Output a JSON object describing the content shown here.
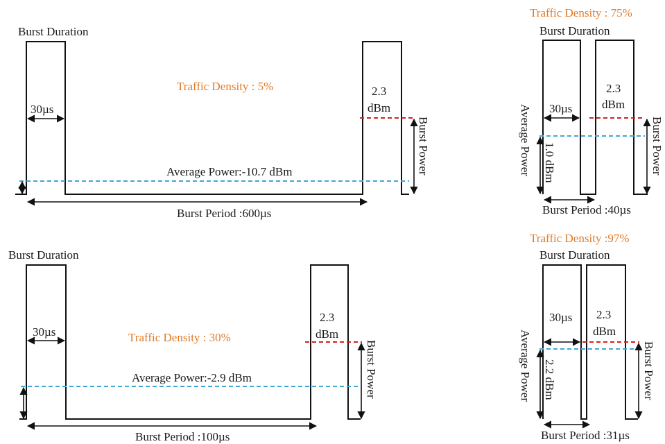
{
  "common": {
    "burst_duration_label": "Burst Duration",
    "burst_power_label": "Burst Power",
    "average_power_label": "Average Power",
    "peak_power_value": "2.3",
    "peak_power_unit": "dBm",
    "duration_value": "30µs",
    "colors": {
      "density_text": "#e07b2a",
      "peak_line": "#d62020",
      "average_line": "#3fa7d8",
      "waveform": "#111111"
    }
  },
  "panels": [
    {
      "id": "td5",
      "traffic_density": "Traffic Density : 5%",
      "average_power": "Average Power:-10.7 dBm",
      "burst_period": "Burst Period :600µs"
    },
    {
      "id": "td30",
      "traffic_density": "Traffic Density : 30%",
      "average_power": "Average Power:-2.9 dBm",
      "burst_period": "Burst Period :100µs"
    },
    {
      "id": "td75",
      "traffic_density": "Traffic Density : 75%",
      "average_power_value": "1.0 dBm",
      "burst_period": "Burst Period :40µs"
    },
    {
      "id": "td97",
      "traffic_density": "Traffic Density :97%",
      "average_power_value": "2.2 dBm",
      "burst_period": "Burst Period :31µs"
    }
  ]
}
